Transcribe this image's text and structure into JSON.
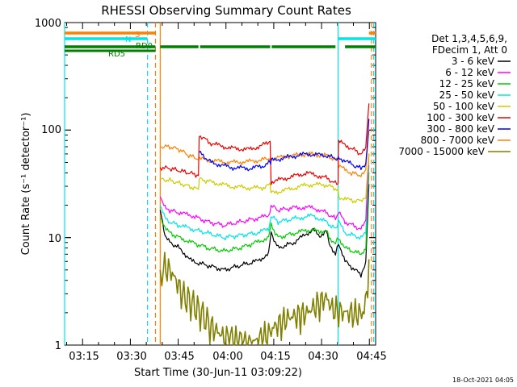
{
  "chart_data": {
    "type": "line",
    "title": "RHESSI Observing Summary Count Rates",
    "xlabel": "Start Time (30-Jun-11 03:09:22)",
    "ylabel": "Count Rate (s⁻¹ detector⁻¹)",
    "y_scale": "log",
    "ylim": [
      1,
      1000
    ],
    "xlim": [
      "03:09:22",
      "04:47:00"
    ],
    "grid": false,
    "x_ticks": [
      "03:15",
      "03:30",
      "03:45",
      "04:00",
      "04:15",
      "04:30",
      "04:45"
    ],
    "y_ticks": [
      "1",
      "10",
      "100",
      "1000"
    ],
    "legend": {
      "placement": "right",
      "header": [
        "Det 1,3,4,5,6,9,",
        "FDecim 1, Att 0"
      ],
      "entries": [
        {
          "label": "3 - 6 keV",
          "color": "#000000"
        },
        {
          "label": "6 - 12 keV",
          "color": "#ff00ff"
        },
        {
          "label": "12 - 25 keV",
          "color": "#00cc00"
        },
        {
          "label": "25 - 50 keV",
          "color": "#00e5e5"
        },
        {
          "label": "50 - 100 keV",
          "color": "#cccc00"
        },
        {
          "label": "100 - 300 keV",
          "color": "#ee0000"
        },
        {
          "label": "300 - 800 keV",
          "color": "#0000ee"
        },
        {
          "label": "800 - 7000 keV",
          "color": "#ff8000"
        },
        {
          "label": "7000 - 15000 keV",
          "color": "#808000"
        }
      ]
    },
    "series": [
      {
        "name": "3 - 6 keV",
        "color": "#000000",
        "x": [
          30.0,
          31.5,
          33.0,
          36.0,
          40.0,
          45.0,
          50.0,
          55.0,
          60.0,
          64.0,
          64.8,
          67.0,
          72.0,
          78.0,
          80.0,
          82.0,
          83.0,
          85.0,
          86.0,
          88.0,
          93.0,
          94.5,
          95.5
        ],
        "y": [
          18,
          10,
          9,
          8,
          6,
          5.5,
          5,
          5.5,
          6,
          7,
          11,
          8,
          9,
          12,
          10,
          12,
          9,
          7,
          9,
          6,
          4.5,
          6,
          30
        ]
      },
      {
        "name": "6 - 12 keV",
        "color": "#ff00ff",
        "x": [
          30.0,
          31.5,
          33.0,
          36.0,
          40.0,
          45.0,
          50.0,
          55.0,
          60.0,
          64.0,
          64.8,
          67.0,
          72.0,
          78.0,
          82.0,
          85.0,
          86.0,
          88.0,
          93.0,
          94.5,
          95.5
        ],
        "y": [
          24,
          20,
          18,
          17,
          16,
          14,
          13,
          14,
          15,
          16,
          20,
          18,
          19,
          19,
          17,
          15,
          17,
          14,
          12,
          14,
          60
        ]
      },
      {
        "name": "12 - 25 keV",
        "color": "#00cc00",
        "x": [
          30.0,
          31.5,
          33.0,
          36.0,
          40.0,
          45.0,
          50.0,
          55.0,
          60.0,
          64.0,
          64.8,
          67.0,
          72.0,
          78.0,
          80.0,
          82.0,
          83.0,
          85.0,
          86.0,
          88.0,
          93.0,
          94.5,
          95.5
        ],
        "y": [
          15,
          12,
          11,
          10,
          9,
          8,
          7.5,
          8,
          9,
          10,
          13,
          10,
          11,
          12,
          11,
          12,
          10,
          9,
          10,
          8,
          7,
          8,
          40
        ]
      },
      {
        "name": "25 - 50 keV",
        "color": "#00e5e5",
        "x": [
          30.0,
          31.5,
          33.0,
          36.0,
          40.0,
          45.0,
          50.0,
          55.0,
          60.0,
          64.0,
          64.8,
          67.0,
          72.0,
          78.0,
          82.0,
          85.0,
          86.0,
          88.0,
          93.0,
          94.5,
          95.5
        ],
        "y": [
          20,
          16,
          14,
          13,
          12,
          11,
          10,
          10.5,
          11,
          12,
          16,
          14,
          15,
          16,
          14,
          12,
          14,
          11,
          10,
          11,
          50
        ]
      },
      {
        "name": "50 - 100 keV",
        "color": "#cccc00",
        "x": [
          30.0,
          33.0,
          36.0,
          39.0,
          42.0,
          42.2,
          46.0,
          52.0,
          58.0,
          62.0,
          64.5,
          64.8,
          70.0,
          76.0,
          82.0,
          85.8,
          86.0,
          90.0,
          93.0,
          94.5,
          95.5
        ],
        "y": [
          35,
          34,
          32,
          30,
          28,
          35,
          33,
          30,
          29,
          29,
          31,
          26,
          28,
          31,
          31,
          28,
          24,
          22,
          22,
          24,
          60
        ]
      },
      {
        "name": "100 - 300 keV",
        "color": "#ee0000",
        "x": [
          30.0,
          33.0,
          36.0,
          39.0,
          42.0,
          42.2,
          46.0,
          52.0,
          58.0,
          62.0,
          64.5,
          64.8,
          70.0,
          76.0,
          82.0,
          85.8,
          86.0,
          90.0,
          93.0,
          94.5,
          95.5
        ],
        "y": [
          45,
          44,
          42,
          40,
          38,
          90,
          75,
          68,
          66,
          72,
          80,
          33,
          36,
          40,
          36,
          31,
          78,
          68,
          60,
          68,
          180
        ]
      },
      {
        "name": "300 - 800 keV",
        "color": "#0000ee",
        "x": [
          42.2,
          46.0,
          52.0,
          58.0,
          62.0,
          64.5,
          64.8,
          70.0,
          76.0,
          82.0,
          85.8,
          86.0,
          90.0,
          93.0,
          94.5,
          95.5
        ],
        "y": [
          62,
          50,
          45,
          44,
          46,
          50,
          52,
          56,
          60,
          58,
          54,
          56,
          48,
          44,
          48,
          120
        ]
      },
      {
        "name": "800 - 7000 keV",
        "color": "#ff8000",
        "x": [
          30.0,
          33.0,
          36.0,
          39.0,
          42.0,
          46.0,
          52.0,
          58.0,
          62.0,
          64.5,
          64.8,
          70.0,
          76.0,
          82.0,
          85.8,
          86.0,
          90.0,
          93.0,
          94.5,
          95.5
        ],
        "y": [
          70,
          70,
          66,
          58,
          54,
          52,
          50,
          51,
          53,
          55,
          54,
          57,
          60,
          58,
          52,
          46,
          40,
          38,
          42,
          100
        ]
      },
      {
        "name": "7000 - 15000 keV",
        "color": "#808000",
        "x": [
          30.0,
          31.0,
          33.0,
          35.0,
          37.0,
          40.0,
          43.0,
          46.0,
          50.0,
          55.0,
          60.0,
          64.0,
          66.0,
          70.0,
          76.0,
          80.0,
          82.0,
          84.0,
          88.0,
          92.0,
          94.0,
          95.5
        ],
        "y": [
          5,
          5.5,
          5,
          4,
          3,
          2.5,
          2,
          1.5,
          1.2,
          1.1,
          1.1,
          1.3,
          1.5,
          1.8,
          2.0,
          2.5,
          2.8,
          2.2,
          2,
          2,
          2,
          5
        ]
      }
    ],
    "flag_bars": {
      "labels": [
        "S",
        "N",
        "RD5",
        "RD0"
      ],
      "saa": {
        "label": "S",
        "color": "#ff8000",
        "intervals": [
          [
            0,
            28.5
          ],
          [
            95.5,
            97.6
          ]
        ]
      },
      "night": {
        "label": "N",
        "color": "#00e5e5",
        "intervals": [
          [
            0,
            26.0
          ],
          [
            85.8,
            97.6
          ]
        ]
      },
      "decimation": {
        "label": "RD5 / RD0",
        "color": "#008000",
        "intervals": [
          [
            0,
            28.5
          ],
          [
            30.0,
            42.0
          ],
          [
            42.5,
            64.5
          ],
          [
            65.0,
            85.0
          ],
          [
            88.0,
            97.6
          ]
        ]
      }
    },
    "vertical_markers": [
      {
        "x": 0.0,
        "color": "#00e5e5",
        "style": "solid"
      },
      {
        "x": 26.0,
        "color": "#00e5e5",
        "style": "dashed"
      },
      {
        "x": 28.5,
        "color": "#ff8000",
        "style": "dashed"
      },
      {
        "x": 30.0,
        "color": "#ff8000",
        "style": "solid"
      },
      {
        "x": 85.8,
        "color": "#00e5e5",
        "style": "solid"
      },
      {
        "x": 96.3,
        "color": "#ff8000",
        "style": "dashed"
      },
      {
        "x": 97.0,
        "color": "#00e5e5",
        "style": "dashed"
      }
    ]
  },
  "footer": {
    "timestamp": "18-Oct-2021 04:05"
  }
}
